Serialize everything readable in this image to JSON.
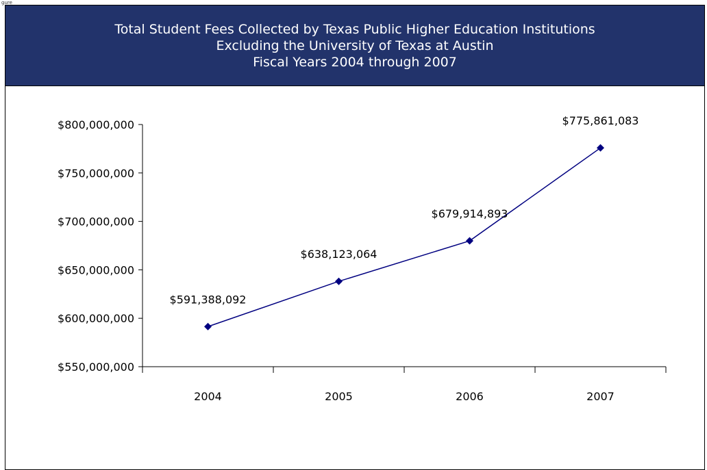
{
  "caption_fragment": "gure",
  "colors": {
    "header_bg": "#22336b",
    "header_text": "#ffffff",
    "series_line": "#000080"
  },
  "header": {
    "title_line1": "Total Student Fees Collected by Texas Public Higher Education Institutions",
    "title_line2": "Excluding the University of Texas at Austin",
    "title_line3": "Fiscal Years 2004 through 2007"
  },
  "chart_data": {
    "type": "line",
    "title": "Total Student Fees Collected by Texas Public Higher Education Institutions Excluding the University of Texas at Austin Fiscal Years 2004 through 2007",
    "categories": [
      "2004",
      "2005",
      "2006",
      "2007"
    ],
    "values": [
      591388092,
      638123064,
      679914893,
      775861083
    ],
    "data_labels": [
      "$591,388,092",
      "$638,123,064",
      "$679,914,893",
      "$775,861,083"
    ],
    "xlabel": "",
    "ylabel": "",
    "ylim": [
      550000000,
      800000000
    ],
    "y_ticks": [
      550000000,
      600000000,
      650000000,
      700000000,
      750000000,
      800000000
    ],
    "y_tick_labels": [
      "$550,000,000",
      "$600,000,000",
      "$650,000,000",
      "$700,000,000",
      "$750,000,000",
      "$800,000,000"
    ],
    "marker": "diamond",
    "grid": false,
    "legend": "none"
  }
}
